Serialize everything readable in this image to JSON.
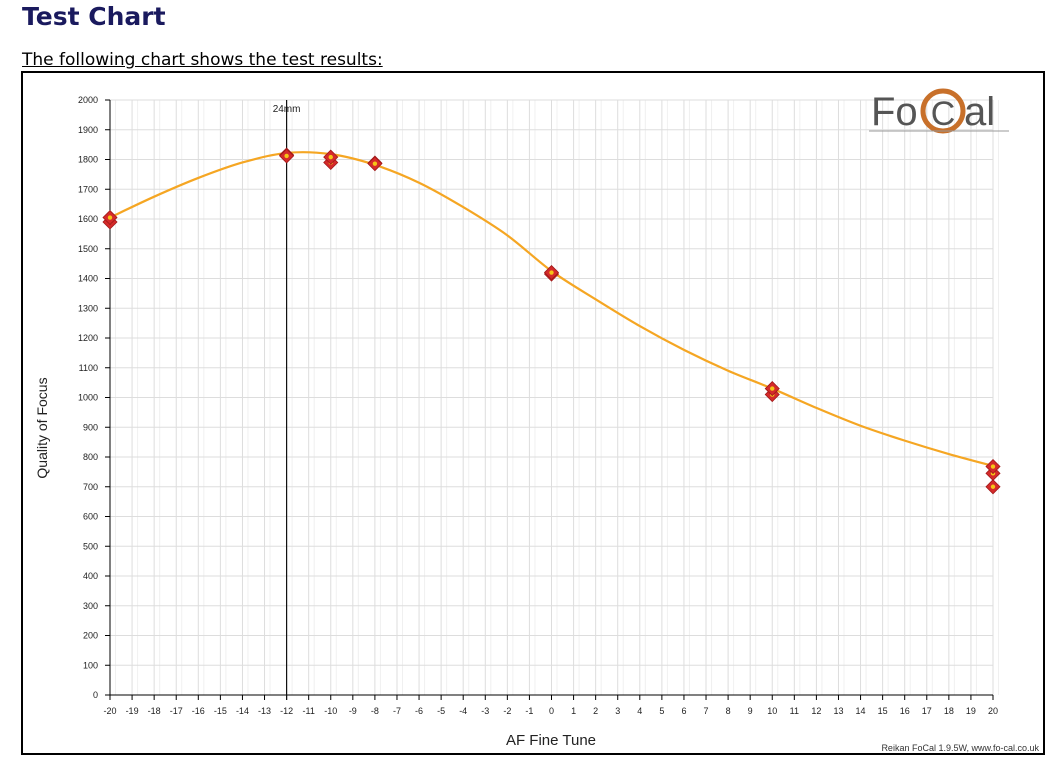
{
  "page": {
    "title": "Test Chart",
    "intro": "The following chart shows the test results:"
  },
  "colors": {
    "curve": "#f5a623",
    "marker": "#d42a2a",
    "marker_dot": "#f5c518",
    "grid": "#dddddd",
    "logo_ring": "#c8702a",
    "title": "#1a1a5e"
  },
  "chart_data": {
    "type": "scatter",
    "xlabel": "AF Fine Tune",
    "ylabel": "Quality of Focus",
    "xlim": [
      -20,
      20
    ],
    "ylim": [
      0,
      2000
    ],
    "x_ticks": [
      -20,
      -19,
      -18,
      -17,
      -16,
      -15,
      -14,
      -13,
      -12,
      -11,
      -10,
      -9,
      -8,
      -7,
      -6,
      -5,
      -4,
      -3,
      -2,
      -1,
      0,
      1,
      2,
      3,
      4,
      5,
      6,
      7,
      8,
      9,
      10,
      11,
      12,
      13,
      14,
      15,
      16,
      17,
      18,
      19,
      20
    ],
    "y_ticks": [
      0,
      100,
      200,
      300,
      400,
      500,
      600,
      700,
      800,
      900,
      1000,
      1100,
      1200,
      1300,
      1400,
      1500,
      1600,
      1700,
      1800,
      1900,
      2000
    ],
    "grid": true,
    "series": [
      {
        "type": "scatter",
        "points": [
          {
            "x": -20,
            "y": 1590
          },
          {
            "x": -20,
            "y": 1605
          },
          {
            "x": -12,
            "y": 1815
          },
          {
            "x": -12,
            "y": 1812
          },
          {
            "x": -10,
            "y": 1790
          },
          {
            "x": -10,
            "y": 1808
          },
          {
            "x": -8,
            "y": 1788
          },
          {
            "x": -8,
            "y": 1786
          },
          {
            "x": 0,
            "y": 1415
          },
          {
            "x": 0,
            "y": 1420
          },
          {
            "x": 10,
            "y": 1010
          },
          {
            "x": 10,
            "y": 1030
          },
          {
            "x": 20,
            "y": 700
          },
          {
            "x": 20,
            "y": 745
          },
          {
            "x": 20,
            "y": 768
          }
        ]
      },
      {
        "type": "line",
        "smooth": true,
        "points": [
          {
            "x": -20,
            "y": 1605
          },
          {
            "x": -18,
            "y": 1675
          },
          {
            "x": -16,
            "y": 1738
          },
          {
            "x": -14,
            "y": 1790
          },
          {
            "x": -12,
            "y": 1822
          },
          {
            "x": -10,
            "y": 1818
          },
          {
            "x": -8,
            "y": 1782
          },
          {
            "x": -6,
            "y": 1722
          },
          {
            "x": -4,
            "y": 1640
          },
          {
            "x": -2,
            "y": 1545
          },
          {
            "x": 0,
            "y": 1425
          },
          {
            "x": 2,
            "y": 1330
          },
          {
            "x": 4,
            "y": 1240
          },
          {
            "x": 6,
            "y": 1160
          },
          {
            "x": 8,
            "y": 1090
          },
          {
            "x": 10,
            "y": 1030
          },
          {
            "x": 12,
            "y": 965
          },
          {
            "x": 14,
            "y": 905
          },
          {
            "x": 16,
            "y": 855
          },
          {
            "x": 18,
            "y": 810
          },
          {
            "x": 20,
            "y": 770
          }
        ]
      }
    ],
    "annotations": [
      {
        "type": "vline",
        "x": -12,
        "label": "24mm"
      }
    ],
    "logo": {
      "text_left": "Fo",
      "text_mid": "C",
      "text_right": "al"
    },
    "footer": "Reikan FoCal  1.9.5W,  www.fo-cal.co.uk"
  }
}
